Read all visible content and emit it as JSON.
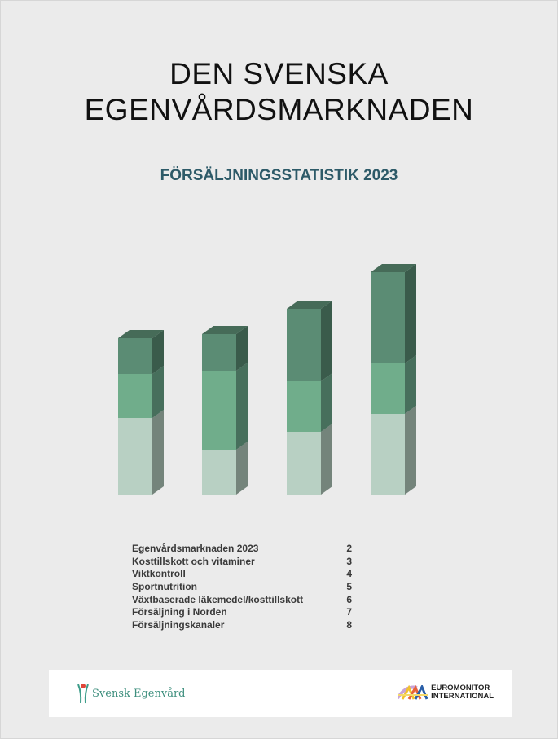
{
  "title_lines": [
    "DEN SVENSKA",
    "EGENVÅRDSMARKNADEN"
  ],
  "subtitle": "FÖRSÄLJNINGSSTATISTIK 2023",
  "decor_chart": {
    "type": "bar",
    "stacked": true,
    "three_d": true,
    "segment_values": [
      [
        94,
        54,
        44
      ],
      [
        55,
        97,
        45
      ],
      [
        77,
        62,
        89
      ],
      [
        99,
        62,
        112
      ]
    ],
    "segment_colors": [
      "#b8d0c3",
      "#70ad8b",
      "#5b8c74"
    ],
    "side_colors": [
      "#74847b",
      "#476f5c",
      "#3a5b4b"
    ],
    "top_color": "#466b58"
  },
  "toc": [
    {
      "label": "Egenvårdsmarknaden 2023",
      "page": "2"
    },
    {
      "label": "Kosttillskott och vitaminer",
      "page": "3"
    },
    {
      "label": "Viktkontroll",
      "page": "4"
    },
    {
      "label": "Sportnutrition",
      "page": "5"
    },
    {
      "label": "Växtbaserade läkemedel/kosttillskott",
      "page": "6"
    },
    {
      "label": "Försäljning i Norden",
      "page": "7"
    },
    {
      "label": "Försäljningskanaler",
      "page": "8"
    }
  ],
  "footer": {
    "left_logo": "Svensk Egenvård",
    "right_logo": [
      "EUROMONITOR",
      "INTERNATIONAL"
    ]
  }
}
